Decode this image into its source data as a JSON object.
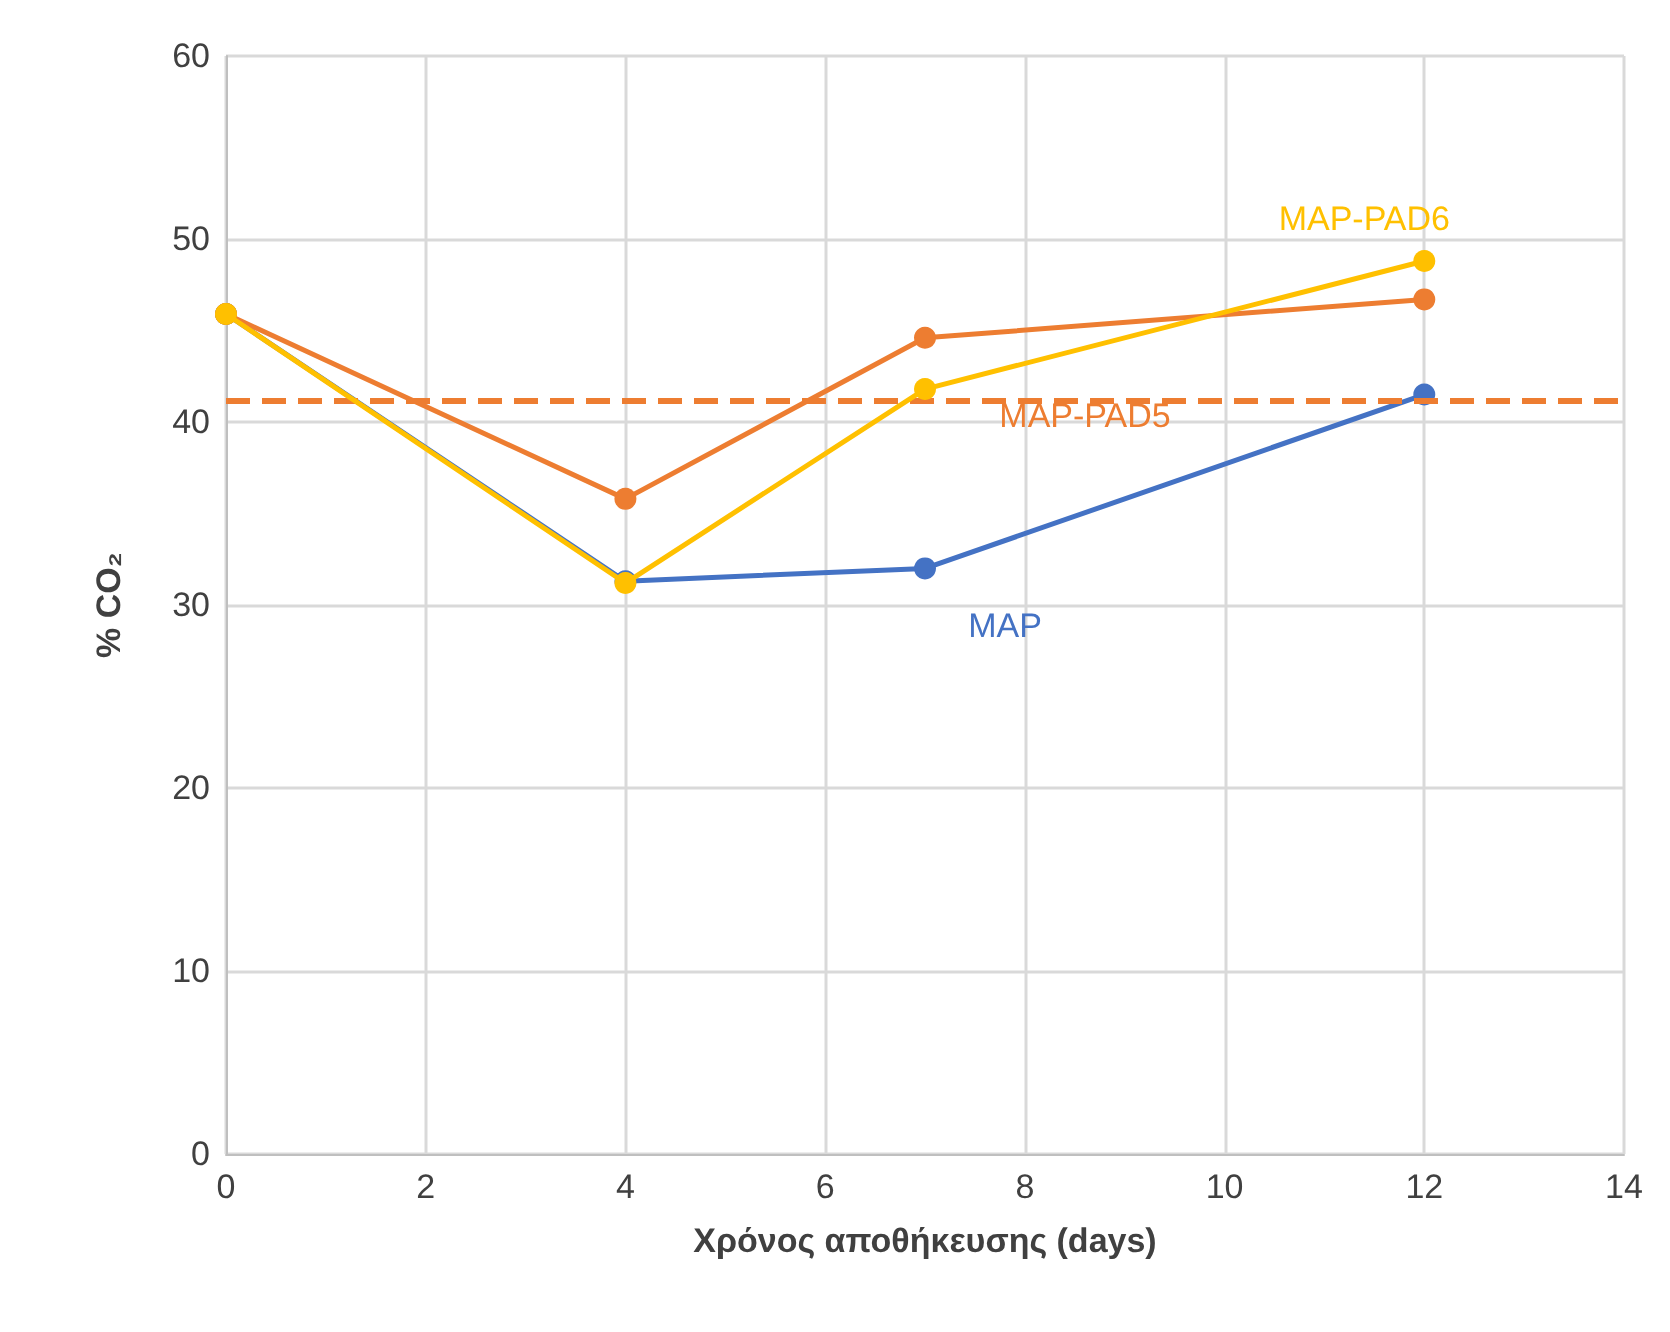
{
  "chart_data": {
    "type": "line",
    "xlabel": "Χρόνος αποθήκευσης (days)",
    "ylabel": "% CO₂",
    "x": [
      0,
      4,
      7,
      12
    ],
    "series": [
      {
        "name": "MAP",
        "color": "#4472c4",
        "values": [
          45.9,
          31.3,
          32,
          41.5
        ]
      },
      {
        "name": "MAP-PAD5",
        "color": "#ed7d31",
        "values": [
          45.9,
          35.8,
          44.6,
          46.7
        ]
      },
      {
        "name": "MAP-PAD6",
        "color": "#ffc000",
        "values": [
          45.9,
          31.2,
          41.8,
          48.8
        ]
      }
    ],
    "xlim": [
      0,
      14
    ],
    "xticks": [
      0,
      2,
      4,
      6,
      8,
      10,
      12,
      14
    ],
    "ylim": [
      0,
      60
    ],
    "yticks": [
      0,
      10,
      20,
      30,
      40,
      50,
      60
    ],
    "ref_lines": [
      {
        "axis": "y",
        "value": 41.2,
        "color": "#ed7d31",
        "line_style": "dashed"
      }
    ],
    "grid": true,
    "legend": false,
    "marker": "circle",
    "line_style": "solid"
  }
}
